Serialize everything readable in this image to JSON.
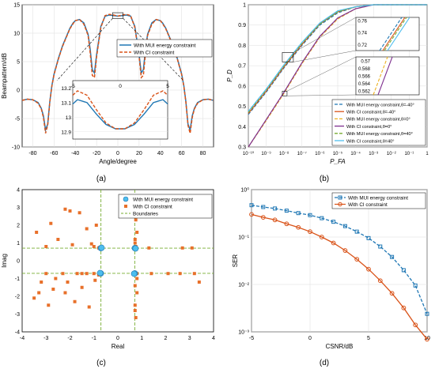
{
  "figure": {
    "captions": [
      "(a)",
      "(b)",
      "(c)",
      "(d)"
    ]
  },
  "chart_data": [
    {
      "type": "line",
      "panel": "(a)",
      "xlabel": "Angle/degree",
      "ylabel": "Beampattern/dB",
      "xlim": [
        -90,
        90
      ],
      "ylim": [
        -10,
        15
      ],
      "xticks": [
        -80,
        -60,
        -40,
        -20,
        0,
        20,
        40,
        60,
        80
      ],
      "yticks": [
        -10,
        -5,
        0,
        5,
        10,
        15
      ],
      "grid": true,
      "legend_position": "right",
      "series": [
        {
          "name": "With MUI energy constraint",
          "color": "#1f77b4",
          "style": "solid",
          "x": [
            -90,
            -85,
            -80,
            -75,
            -72,
            -70,
            -68,
            -66,
            -64,
            -62,
            -60,
            -56,
            -52,
            -48,
            -45,
            -42,
            -40,
            -36,
            -32,
            -28,
            -26,
            -24,
            -22,
            -20,
            -16,
            -12,
            -8,
            -4,
            0,
            4,
            8,
            12,
            16,
            20,
            22,
            24,
            26,
            28,
            32,
            36,
            40,
            42,
            45,
            48,
            52,
            56,
            60,
            62,
            64,
            66,
            68,
            70,
            72,
            75,
            80,
            85,
            90
          ],
          "y": [
            -1.8,
            -1.6,
            -1.7,
            -2.2,
            -3.2,
            -4.5,
            -7,
            -6,
            -2,
            0.8,
            2.8,
            5.5,
            7.8,
            9.6,
            10.9,
            11.8,
            12.2,
            12.4,
            11.8,
            9.8,
            7.2,
            3.6,
            3.0,
            6.2,
            11.2,
            13.0,
            13.2,
            13.1,
            13.0,
            13.1,
            13.2,
            13.0,
            11.2,
            6.2,
            3.0,
            3.6,
            7.2,
            9.8,
            11.8,
            12.4,
            12.2,
            11.8,
            10.9,
            9.6,
            7.8,
            5.5,
            2.8,
            0.8,
            -2,
            -6,
            -7,
            -4.5,
            -3.2,
            -2.2,
            -1.7,
            -1.6,
            -1.8
          ]
        },
        {
          "name": "With CI constraint",
          "color": "#d95319",
          "style": "dashed",
          "x": [
            -90,
            -85,
            -80,
            -75,
            -72,
            -70,
            -68,
            -66,
            -64,
            -62,
            -60,
            -56,
            -52,
            -48,
            -45,
            -42,
            -40,
            -36,
            -32,
            -28,
            -26,
            -24,
            -22,
            -20,
            -16,
            -12,
            -8,
            -4,
            0,
            4,
            8,
            12,
            16,
            20,
            22,
            24,
            26,
            28,
            32,
            36,
            40,
            42,
            45,
            48,
            52,
            56,
            60,
            62,
            64,
            66,
            68,
            70,
            72,
            75,
            80,
            85,
            90
          ],
          "y": [
            -1.8,
            -1.6,
            -1.7,
            -2.3,
            -3.3,
            -4.8,
            -7.6,
            -6.2,
            -2.1,
            0.7,
            2.7,
            5.4,
            7.7,
            9.5,
            10.8,
            11.7,
            12.2,
            12.4,
            11.6,
            9.6,
            6.6,
            2.6,
            2.2,
            5.8,
            11.0,
            13.1,
            13.3,
            13.2,
            13.0,
            13.2,
            13.3,
            13.1,
            11.0,
            5.8,
            2.2,
            2.6,
            6.6,
            9.6,
            11.6,
            12.4,
            12.2,
            11.7,
            10.8,
            9.5,
            7.7,
            5.4,
            2.7,
            0.7,
            -2.1,
            -6.2,
            -7.6,
            -4.8,
            -3.3,
            -2.3,
            -1.7,
            -1.6,
            -1.8
          ]
        }
      ],
      "inset": {
        "xlim": [
          -5,
          5
        ],
        "ylim": [
          12.85,
          13.25
        ],
        "xticks": [
          -5,
          0,
          5
        ],
        "yticks": [
          12.9,
          13,
          13.1,
          13.2
        ],
        "series": [
          {
            "name": "With MUI energy constraint",
            "x": [
              -5,
              -4.5,
              -3.5,
              -2.5,
              -1.5,
              -0.5,
              0.5,
              1.5,
              2.5,
              3.5,
              4.5,
              5
            ],
            "y": [
              13.09,
              13.12,
              13.1,
              13.02,
              12.95,
              12.92,
              12.92,
              12.95,
              13.02,
              13.1,
              13.12,
              13.09
            ]
          },
          {
            "name": "With CI constraint",
            "x": [
              -5,
              -4.5,
              -3.5,
              -2.5,
              -1.5,
              -0.5,
              0.5,
              1.5,
              2.5,
              3.5,
              4.5,
              5
            ],
            "y": [
              13.15,
              13.18,
              13.15,
              13.05,
              12.96,
              12.92,
              12.92,
              12.96,
              13.05,
              13.15,
              13.18,
              13.15
            ]
          }
        ]
      }
    },
    {
      "type": "line",
      "panel": "(b)",
      "xlabel": "P_FA",
      "ylabel": "P_D",
      "xscale": "log",
      "xlim": [
        1e-10,
        1
      ],
      "ylim": [
        0.3,
        1
      ],
      "xticklabels": [
        "10⁻¹⁰",
        "10⁻⁹",
        "10⁻⁸",
        "10⁻⁷",
        "10⁻⁶",
        "10⁻⁵",
        "10⁻⁴",
        "10⁻³",
        "10⁻²",
        "10⁻¹",
        "1"
      ],
      "yticks": [
        0.3,
        0.4,
        0.5,
        0.6,
        0.7,
        0.8,
        0.9,
        1
      ],
      "grid": true,
      "legend_position": "bottom-right",
      "series": [
        {
          "name": "With MUI energy constraint,θ=-40°",
          "color": "#1f77b4",
          "style": "dashed",
          "log10x": [
            -10,
            -9,
            -8,
            -7,
            -6,
            -5,
            -4,
            -3,
            -2,
            -1,
            0
          ],
          "y": [
            0.46,
            0.57,
            0.69,
            0.8,
            0.9,
            0.96,
            0.99,
            1,
            1,
            1,
            1
          ]
        },
        {
          "name": "With CI constraint,θ=-40°",
          "color": "#d95319",
          "style": "solid",
          "log10x": [
            -10,
            -9,
            -8,
            -7,
            -6,
            -5,
            -4,
            -3,
            -2,
            -1,
            0
          ],
          "y": [
            0.465,
            0.575,
            0.695,
            0.805,
            0.905,
            0.965,
            0.99,
            1,
            1,
            1,
            1
          ]
        },
        {
          "name": "With MUI energy constraint,θ=0°",
          "color": "#edb120",
          "style": "dashed",
          "log10x": [
            -10,
            -9,
            -8,
            -7,
            -6,
            -5,
            -4,
            -3,
            -2,
            -1,
            0
          ],
          "y": [
            0.3,
            0.43,
            0.565,
            0.71,
            0.84,
            0.93,
            0.98,
            1,
            1,
            1,
            1
          ]
        },
        {
          "name": "With CI constraint,θ=0°",
          "color": "#7e2f8e",
          "style": "solid",
          "log10x": [
            -10,
            -9,
            -8,
            -7,
            -6,
            -5,
            -4,
            -3,
            -2,
            -1,
            0
          ],
          "y": [
            0.3,
            0.435,
            0.57,
            0.715,
            0.845,
            0.935,
            0.98,
            1,
            1,
            1,
            1
          ]
        },
        {
          "name": "With MUI energy constraint,θ=40°",
          "color": "#77ac30",
          "style": "dashed",
          "log10x": [
            -10,
            -9,
            -8,
            -7,
            -6,
            -5,
            -4,
            -3,
            -2,
            -1,
            0
          ],
          "y": [
            0.47,
            0.58,
            0.7,
            0.81,
            0.905,
            0.965,
            0.99,
            1,
            1,
            1,
            1
          ]
        },
        {
          "name": "With CI constraint,θ=40°",
          "color": "#4dbeee",
          "style": "solid",
          "log10x": [
            -10,
            -9,
            -8,
            -7,
            -6,
            -5,
            -4,
            -3,
            -2,
            -1,
            0
          ],
          "y": [
            0.475,
            0.585,
            0.705,
            0.815,
            0.91,
            0.97,
            0.99,
            1,
            1,
            1,
            1
          ]
        }
      ],
      "inset_upper": {
        "yticks": [
          0.72,
          0.74,
          0.76
        ]
      },
      "inset_lower": {
        "yticks": [
          0.562,
          0.564,
          0.566,
          0.568,
          0.57
        ]
      }
    },
    {
      "type": "scatter",
      "panel": "(c)",
      "xlabel": "Real",
      "ylabel": "Imag",
      "xlim": [
        -4,
        4
      ],
      "ylim": [
        -4,
        4
      ],
      "xticks": [
        -4,
        -3,
        -2,
        -1,
        0,
        1,
        2,
        3,
        4
      ],
      "yticks": [
        -4,
        -3,
        -2,
        -1,
        0,
        1,
        2,
        3,
        4
      ],
      "grid": false,
      "legend_position": "top-right",
      "series": [
        {
          "name": "With MUI energy constraint",
          "color": "#1f77b4",
          "marker": "circle",
          "x": [
            -0.71,
            -0.71,
            0.71,
            0.71,
            -0.68,
            0.68,
            -0.74,
            0.74
          ],
          "y": [
            0.71,
            -0.71,
            0.71,
            -0.71,
            0.73,
            -0.73,
            -0.69,
            0.69
          ]
        },
        {
          "name": "With CI constraint",
          "color": "#e8702a",
          "marker": "square",
          "x": [
            -3.4,
            -3.0,
            -2.8,
            -2.5,
            -2.2,
            -2.0,
            -1.9,
            -1.6,
            -1.3,
            -1.1,
            -1.0,
            -0.8,
            -0.75,
            -0.9,
            -3.0,
            -3.2,
            -2.6,
            -2.2,
            -1.8,
            -1.5,
            -1.2,
            -0.95,
            -0.8,
            -0.72,
            -3.5,
            -2.9,
            -2.3,
            -1.7,
            -1.3,
            -1.0,
            -3.3,
            -2.7,
            -2.1,
            -1.5,
            -0.8,
            -0.72,
            0.72,
            0.8,
            1.4,
            2.1,
            2.6,
            3.2,
            3.4,
            0.72,
            0.75,
            0.8,
            0.72,
            0.75,
            0.72,
            0.8,
            0.72,
            0.75,
            0.72,
            0.8,
            2.7,
            3.1,
            0.72,
            0.75,
            0.72,
            1.3
          ],
          "y": [
            1.6,
            0.8,
            2.1,
            1.2,
            2.9,
            2.8,
            0.9,
            2.7,
            1.8,
            0.95,
            0.8,
            0.72,
            0.75,
            2.0,
            -0.72,
            -1.2,
            -1.0,
            -1.8,
            -2.3,
            -1.5,
            -2.6,
            -1.1,
            -0.8,
            -0.72,
            -2.1,
            -2.5,
            -0.72,
            -0.72,
            -0.72,
            -0.72,
            -1.8,
            -1.6,
            -1.2,
            -0.72,
            -0.72,
            -0.75,
            -0.72,
            -0.72,
            -0.72,
            -0.72,
            -0.72,
            -0.72,
            -1.2,
            3.5,
            2.3,
            1.6,
            1.0,
            0.8,
            -1.4,
            -1.8,
            -2.8,
            -3.2,
            -2.5,
            -1.0,
            0.72,
            0.72,
            0.75,
            0.8,
            1.2,
            0.72
          ]
        },
        {
          "name": "Boundaries",
          "color": "#77ac30",
          "style": "dashed"
        }
      ],
      "boundaries": {
        "x": [
          -0.707,
          0.707
        ],
        "y": [
          -0.707,
          0.707
        ]
      }
    },
    {
      "type": "line",
      "panel": "(d)",
      "xlabel": "CSNR/dB",
      "ylabel": "SER",
      "yscale": "log",
      "xlim": [
        -5,
        10
      ],
      "ylim": [
        0.001,
        1
      ],
      "xticks": [
        -5,
        0,
        5,
        10
      ],
      "yticklabels": [
        "10⁻³",
        "10⁻²",
        "10⁻¹",
        "10⁰"
      ],
      "grid": true,
      "legend_position": "top-right",
      "series": [
        {
          "name": "With MUI energy constraint",
          "color": "#1f77b4",
          "style": "dashed",
          "marker": "square",
          "x": [
            -5,
            -4,
            -3,
            -2,
            -1,
            0,
            1,
            2,
            3,
            4,
            5,
            6,
            7,
            8,
            9,
            10
          ],
          "y": [
            0.47,
            0.43,
            0.4,
            0.36,
            0.32,
            0.29,
            0.25,
            0.21,
            0.17,
            0.13,
            0.095,
            0.063,
            0.038,
            0.02,
            0.0095,
            0.0024
          ]
        },
        {
          "name": "With CI constraint",
          "color": "#d95319",
          "style": "solid",
          "marker": "circle",
          "x": [
            -5,
            -4,
            -3,
            -2,
            -1,
            0,
            1,
            2,
            3,
            4,
            5,
            6,
            7,
            8,
            9,
            10
          ],
          "y": [
            0.3,
            0.26,
            0.23,
            0.19,
            0.16,
            0.13,
            0.1,
            0.075,
            0.052,
            0.034,
            0.021,
            0.012,
            0.0065,
            0.0032,
            0.0014,
            0.0007
          ]
        }
      ]
    }
  ]
}
